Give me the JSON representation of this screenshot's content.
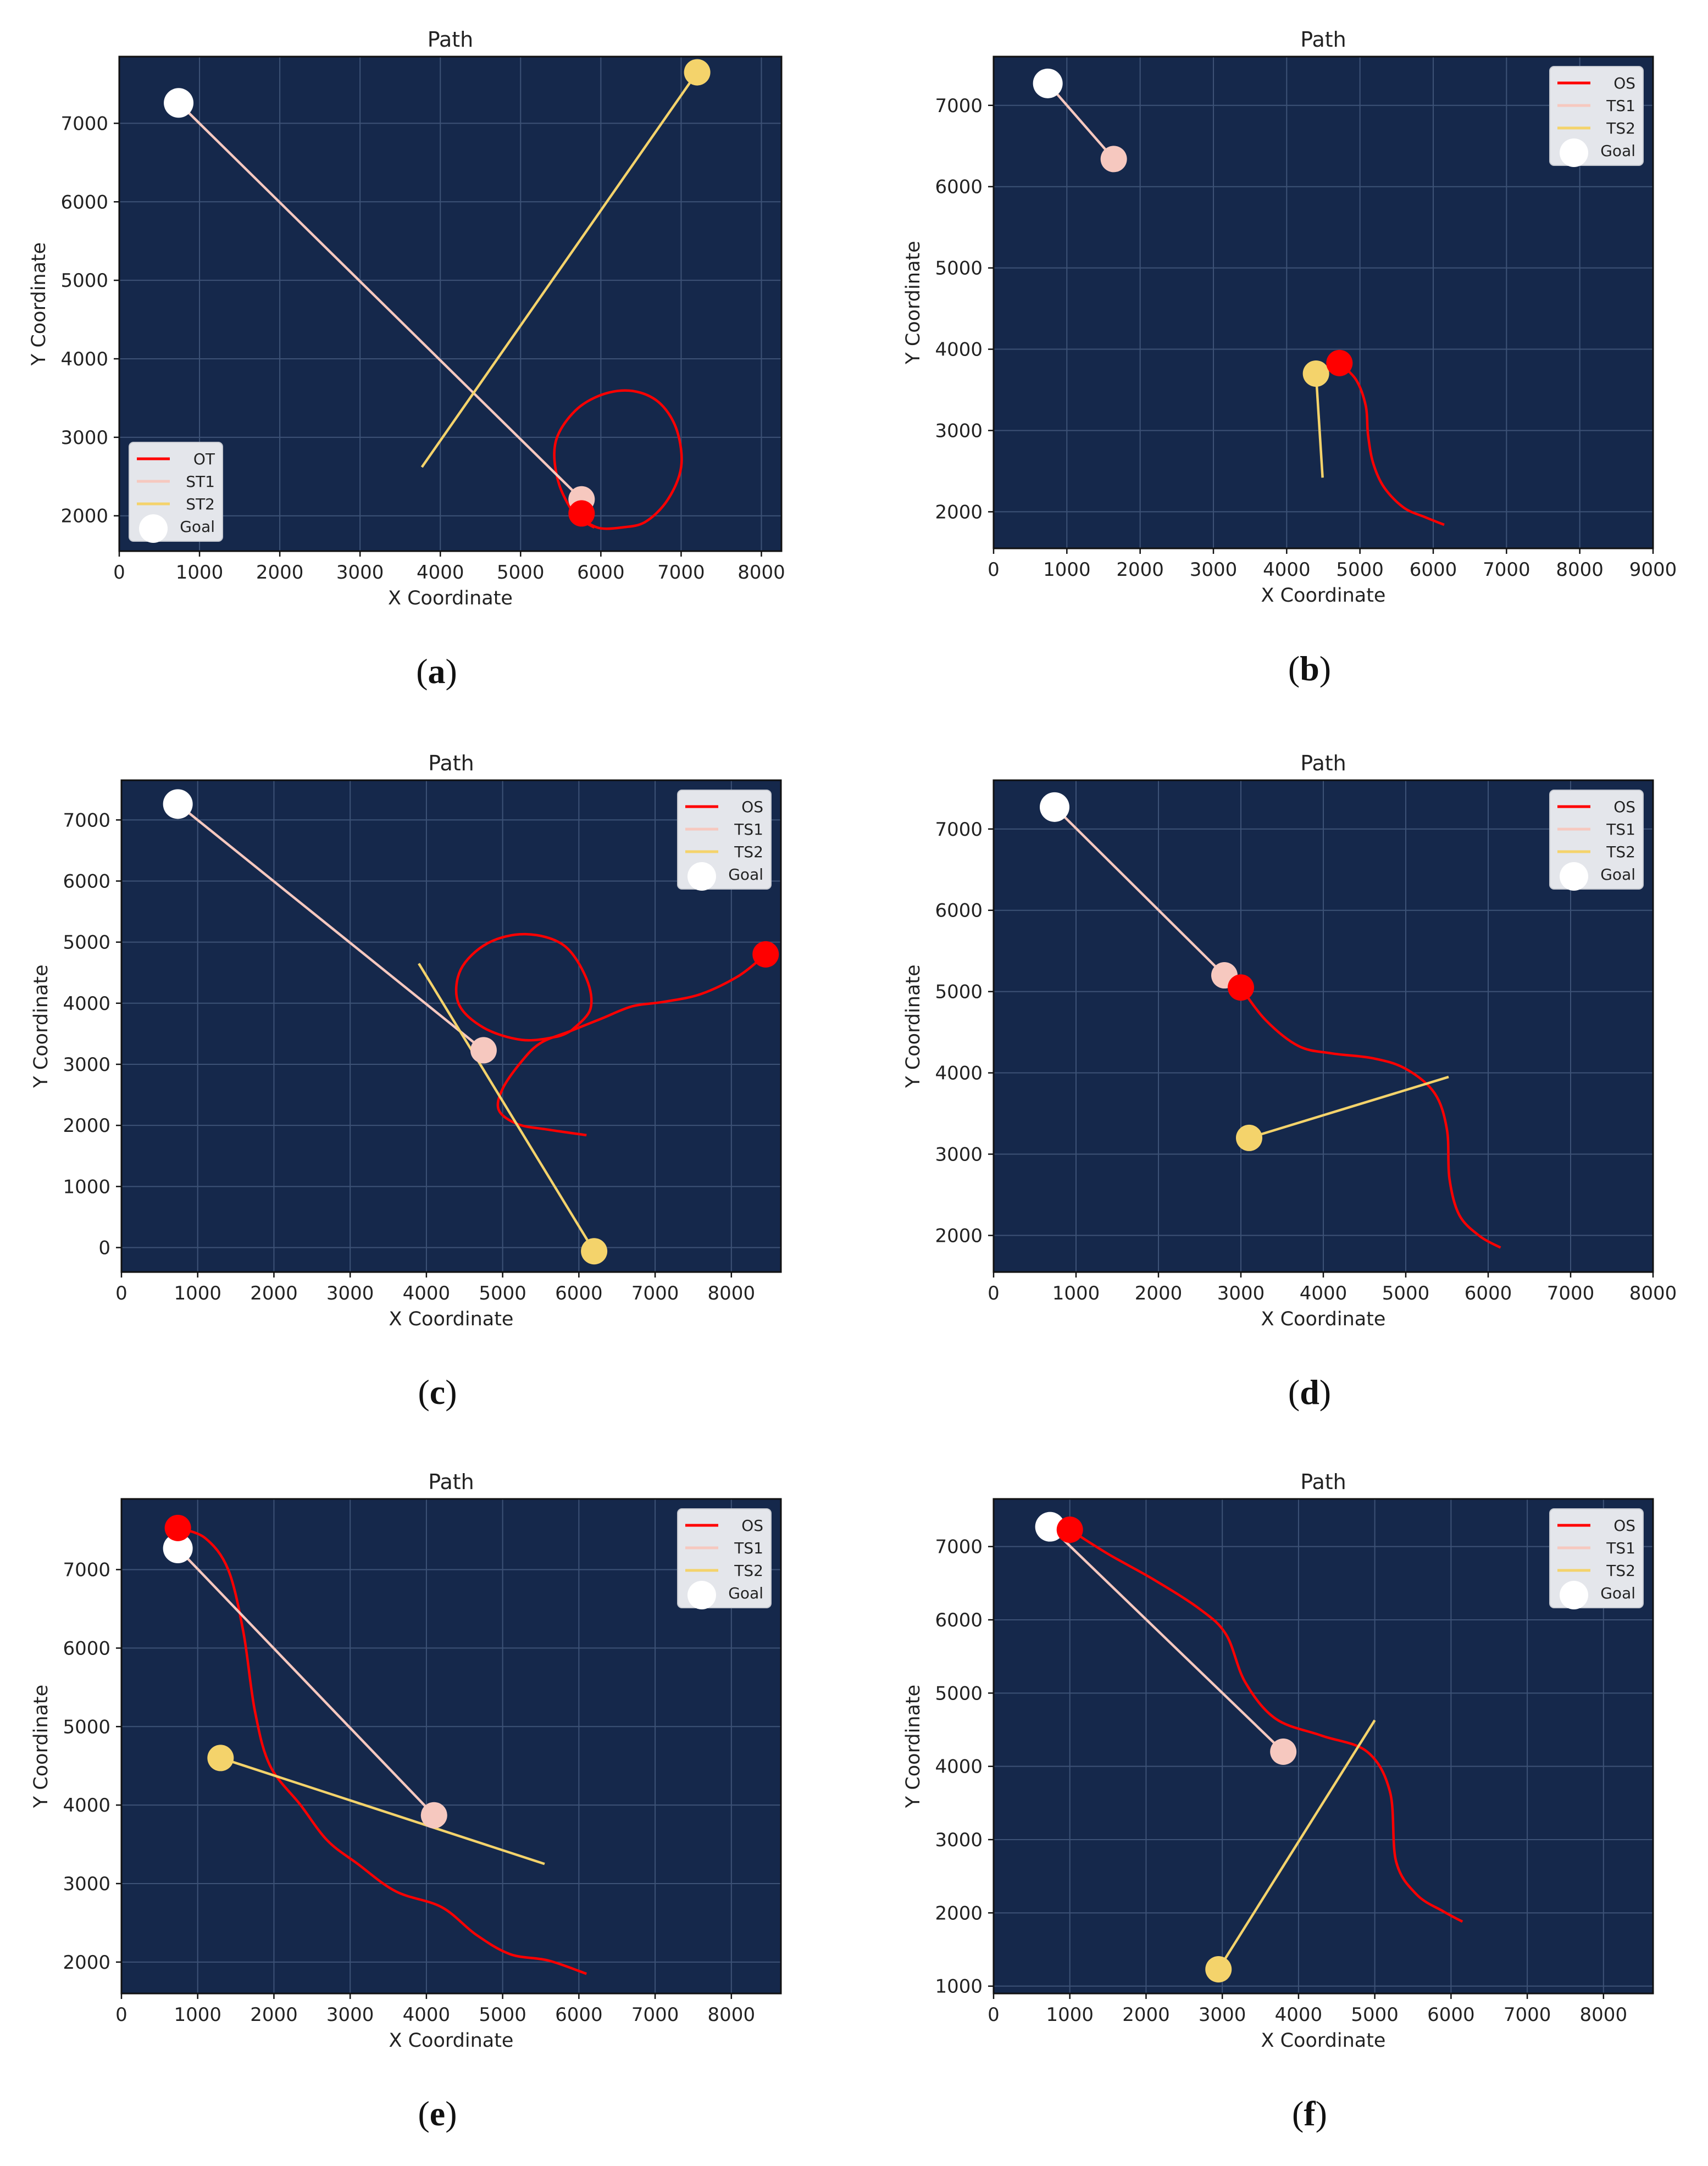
{
  "chart_data": [
    {
      "type": "line",
      "title": "Path",
      "xlabel": "X Coordinate",
      "ylabel": "Y Coordinate",
      "caption": "a",
      "xlim": [
        0,
        8250
      ],
      "ylim": [
        1550,
        7850
      ],
      "xticks": [
        0,
        1000,
        2000,
        3000,
        4000,
        5000,
        6000,
        7000,
        8000
      ],
      "yticks": [
        2000,
        3000,
        4000,
        5000,
        6000,
        7000
      ],
      "grid": true,
      "legend_position": "lower-left",
      "legend": [
        "OT",
        "ST1",
        "ST2",
        "Goal"
      ],
      "series": [
        {
          "name": "OT",
          "color": "#ff0000",
          "points": [
            [
              5850,
              1900
            ],
            [
              6000,
              1840
            ],
            [
              6250,
              1850
            ],
            [
              6550,
              1920
            ],
            [
              6830,
              2200
            ],
            [
              7000,
              2620
            ],
            [
              6950,
              3080
            ],
            [
              6750,
              3420
            ],
            [
              6450,
              3580
            ],
            [
              6100,
              3570
            ],
            [
              5750,
              3400
            ],
            [
              5500,
              3100
            ],
            [
              5420,
              2800
            ],
            [
              5480,
              2400
            ],
            [
              5650,
              2050
            ],
            [
              5780,
              1930
            ],
            [
              5920,
              1850
            ]
          ],
          "marker": [
            5760,
            2030
          ]
        },
        {
          "name": "ST1",
          "color": "#f6c8bf",
          "points": [
            [
              740,
              7260
            ],
            [
              5760,
              2210
            ]
          ],
          "marker": [
            5760,
            2210
          ]
        },
        {
          "name": "ST2",
          "color": "#f4d36b",
          "points": [
            [
              3770,
              2620
            ],
            [
              7200,
              7650
            ]
          ],
          "marker": [
            7200,
            7650
          ]
        }
      ],
      "goal": [
        740,
        7260
      ]
    },
    {
      "type": "line",
      "title": "Path",
      "xlabel": "X Coordinate",
      "ylabel": "Y Coordinate",
      "caption": "b",
      "xlim": [
        0,
        9000
      ],
      "ylim": [
        1550,
        7600
      ],
      "xticks": [
        0,
        1000,
        2000,
        3000,
        4000,
        5000,
        6000,
        7000,
        8000,
        9000
      ],
      "yticks": [
        2000,
        3000,
        4000,
        5000,
        6000,
        7000
      ],
      "grid": true,
      "legend_position": "top-right",
      "legend": [
        "OS",
        "TS1",
        "TS2",
        "Goal"
      ],
      "series": [
        {
          "name": "OS",
          "color": "#ff0000",
          "points": [
            [
              4720,
              3830
            ],
            [
              4950,
              3620
            ],
            [
              5080,
              3300
            ],
            [
              5110,
              2950
            ],
            [
              5180,
              2600
            ],
            [
              5330,
              2300
            ],
            [
              5600,
              2050
            ],
            [
              5900,
              1930
            ],
            [
              6150,
              1840
            ]
          ],
          "marker": [
            4720,
            3830
          ]
        },
        {
          "name": "TS1",
          "color": "#f6c8bf",
          "points": [
            [
              740,
              7270
            ],
            [
              1640,
              6340
            ]
          ],
          "marker": [
            1640,
            6340
          ]
        },
        {
          "name": "TS2",
          "color": "#f4d36b",
          "points": [
            [
              4490,
              2420
            ],
            [
              4400,
              3700
            ]
          ],
          "marker": [
            4400,
            3700
          ]
        }
      ],
      "goal": [
        740,
        7270
      ]
    },
    {
      "type": "line",
      "title": "Path",
      "xlabel": "X Coordinate",
      "ylabel": "Y Coordinate",
      "caption": "c",
      "xlim": [
        0,
        8650
      ],
      "ylim": [
        -400,
        7650
      ],
      "xticks": [
        0,
        1000,
        2000,
        3000,
        4000,
        5000,
        6000,
        7000,
        8000
      ],
      "yticks": [
        0,
        1000,
        2000,
        3000,
        4000,
        5000,
        6000,
        7000
      ],
      "grid": true,
      "legend_position": "top-right",
      "legend": [
        "OS",
        "TS1",
        "TS2",
        "Goal"
      ],
      "series": [
        {
          "name": "OS",
          "color": "#ff0000",
          "points": [
            [
              8450,
              4800
            ],
            [
              8100,
              4450
            ],
            [
              7600,
              4150
            ],
            [
              7100,
              4020
            ],
            [
              6700,
              3950
            ],
            [
              6300,
              3750
            ],
            [
              5900,
              3550
            ],
            [
              5500,
              3350
            ],
            [
              5250,
              3050
            ],
            [
              5000,
              2600
            ],
            [
              4950,
              2250
            ],
            [
              5200,
              2020
            ],
            [
              5600,
              1930
            ],
            [
              6100,
              1840
            ]
          ],
          "loop": [
            [
              5900,
              3550
            ],
            [
              6150,
              3900
            ],
            [
              6100,
              4400
            ],
            [
              5800,
              4950
            ],
            [
              5300,
              5130
            ],
            [
              4800,
              4980
            ],
            [
              4450,
              4550
            ],
            [
              4420,
              4000
            ],
            [
              4750,
              3600
            ],
            [
              5250,
              3400
            ],
            [
              5700,
              3450
            ]
          ],
          "marker": [
            8450,
            4800
          ]
        },
        {
          "name": "TS1",
          "color": "#f6c8bf",
          "points": [
            [
              740,
              7260
            ],
            [
              4750,
              3230
            ]
          ],
          "marker": [
            4750,
            3230
          ]
        },
        {
          "name": "TS2",
          "color": "#f4d36b",
          "points": [
            [
              3900,
              4650
            ],
            [
              6200,
              -60
            ]
          ],
          "marker": [
            6200,
            -60
          ]
        }
      ],
      "goal": [
        740,
        7260
      ]
    },
    {
      "type": "line",
      "title": "Path",
      "xlabel": "X Coordinate",
      "ylabel": "Y Coordinate",
      "caption": "d",
      "xlim": [
        0,
        8000
      ],
      "ylim": [
        1550,
        7600
      ],
      "xticks": [
        0,
        1000,
        2000,
        3000,
        4000,
        5000,
        6000,
        7000,
        8000
      ],
      "yticks": [
        2000,
        3000,
        4000,
        5000,
        6000,
        7000
      ],
      "grid": true,
      "legend_position": "top-right",
      "legend": [
        "OS",
        "TS1",
        "TS2",
        "Goal"
      ],
      "series": [
        {
          "name": "OS",
          "color": "#ff0000",
          "points": [
            [
              3000,
              5050
            ],
            [
              3300,
              4650
            ],
            [
              3700,
              4330
            ],
            [
              4100,
              4240
            ],
            [
              4600,
              4180
            ],
            [
              5000,
              4050
            ],
            [
              5350,
              3750
            ],
            [
              5500,
              3300
            ],
            [
              5530,
              2700
            ],
            [
              5650,
              2250
            ],
            [
              5900,
              1990
            ],
            [
              6150,
              1850
            ]
          ],
          "marker": [
            3000,
            5050
          ]
        },
        {
          "name": "TS1",
          "color": "#f6c8bf",
          "points": [
            [
              740,
              7270
            ],
            [
              2800,
              5200
            ]
          ],
          "marker": [
            2800,
            5200
          ]
        },
        {
          "name": "TS2",
          "color": "#f4d36b",
          "points": [
            [
              3100,
              3200
            ],
            [
              5520,
              3950
            ]
          ],
          "marker": [
            3100,
            3200
          ]
        }
      ],
      "goal": [
        740,
        7270
      ]
    },
    {
      "type": "line",
      "title": "Path",
      "xlabel": "X Coordinate",
      "ylabel": "Y Coordinate",
      "caption": "e",
      "xlim": [
        0,
        8650
      ],
      "ylim": [
        1600,
        7900
      ],
      "xticks": [
        0,
        1000,
        2000,
        3000,
        4000,
        5000,
        6000,
        7000,
        8000
      ],
      "yticks": [
        2000,
        3000,
        4000,
        5000,
        6000,
        7000
      ],
      "grid": true,
      "legend_position": "top-right",
      "legend": [
        "OS",
        "TS1",
        "TS2",
        "Goal"
      ],
      "series": [
        {
          "name": "OS",
          "color": "#ff0000",
          "points": [
            [
              740,
              7530
            ],
            [
              1100,
              7400
            ],
            [
              1400,
              7000
            ],
            [
              1600,
              6200
            ],
            [
              1750,
              5200
            ],
            [
              1950,
              4500
            ],
            [
              2350,
              4000
            ],
            [
              2700,
              3550
            ],
            [
              3100,
              3250
            ],
            [
              3600,
              2900
            ],
            [
              4200,
              2700
            ],
            [
              4650,
              2350
            ],
            [
              5100,
              2100
            ],
            [
              5600,
              2020
            ],
            [
              6100,
              1850
            ]
          ],
          "marker": [
            740,
            7530
          ]
        },
        {
          "name": "TS1",
          "color": "#f6c8bf",
          "points": [
            [
              740,
              7270
            ],
            [
              4100,
              3870
            ]
          ],
          "marker": [
            4100,
            3870
          ]
        },
        {
          "name": "TS2",
          "color": "#f4d36b",
          "points": [
            [
              1300,
              4600
            ],
            [
              5550,
              3250
            ]
          ],
          "marker": [
            1300,
            4600
          ]
        }
      ],
      "goal": [
        740,
        7270
      ]
    },
    {
      "type": "line",
      "title": "Path",
      "xlabel": "X Coordinate",
      "ylabel": "Y Coordinate",
      "caption": "f",
      "xlim": [
        0,
        8650
      ],
      "ylim": [
        900,
        7650
      ],
      "xticks": [
        0,
        1000,
        2000,
        3000,
        4000,
        5000,
        6000,
        7000,
        8000
      ],
      "yticks": [
        1000,
        2000,
        3000,
        4000,
        5000,
        6000,
        7000
      ],
      "grid": true,
      "legend_position": "top-right",
      "legend": [
        "OS",
        "TS1",
        "TS2",
        "Goal"
      ],
      "series": [
        {
          "name": "OS",
          "color": "#ff0000",
          "points": [
            [
              1000,
              7230
            ],
            [
              1500,
              6900
            ],
            [
              2100,
              6550
            ],
            [
              2700,
              6150
            ],
            [
              3050,
              5800
            ],
            [
              3300,
              5150
            ],
            [
              3700,
              4650
            ],
            [
              4300,
              4420
            ],
            [
              4900,
              4200
            ],
            [
              5200,
              3650
            ],
            [
              5280,
              2700
            ],
            [
              5550,
              2250
            ],
            [
              5900,
              2020
            ],
            [
              6150,
              1880
            ]
          ],
          "marker": [
            1000,
            7230
          ]
        },
        {
          "name": "TS1",
          "color": "#f6c8bf",
          "points": [
            [
              740,
              7270
            ],
            [
              3800,
              4200
            ]
          ],
          "marker": [
            3800,
            4200
          ]
        },
        {
          "name": "TS2",
          "color": "#f4d36b",
          "points": [
            [
              2950,
              1230
            ],
            [
              5000,
              4630
            ]
          ],
          "marker": [
            2950,
            1230
          ]
        }
      ],
      "goal": [
        740,
        7270
      ]
    }
  ],
  "colors": {
    "plot_background": "#15284b",
    "grid": "#3d5276",
    "goal": "#ffffff"
  }
}
